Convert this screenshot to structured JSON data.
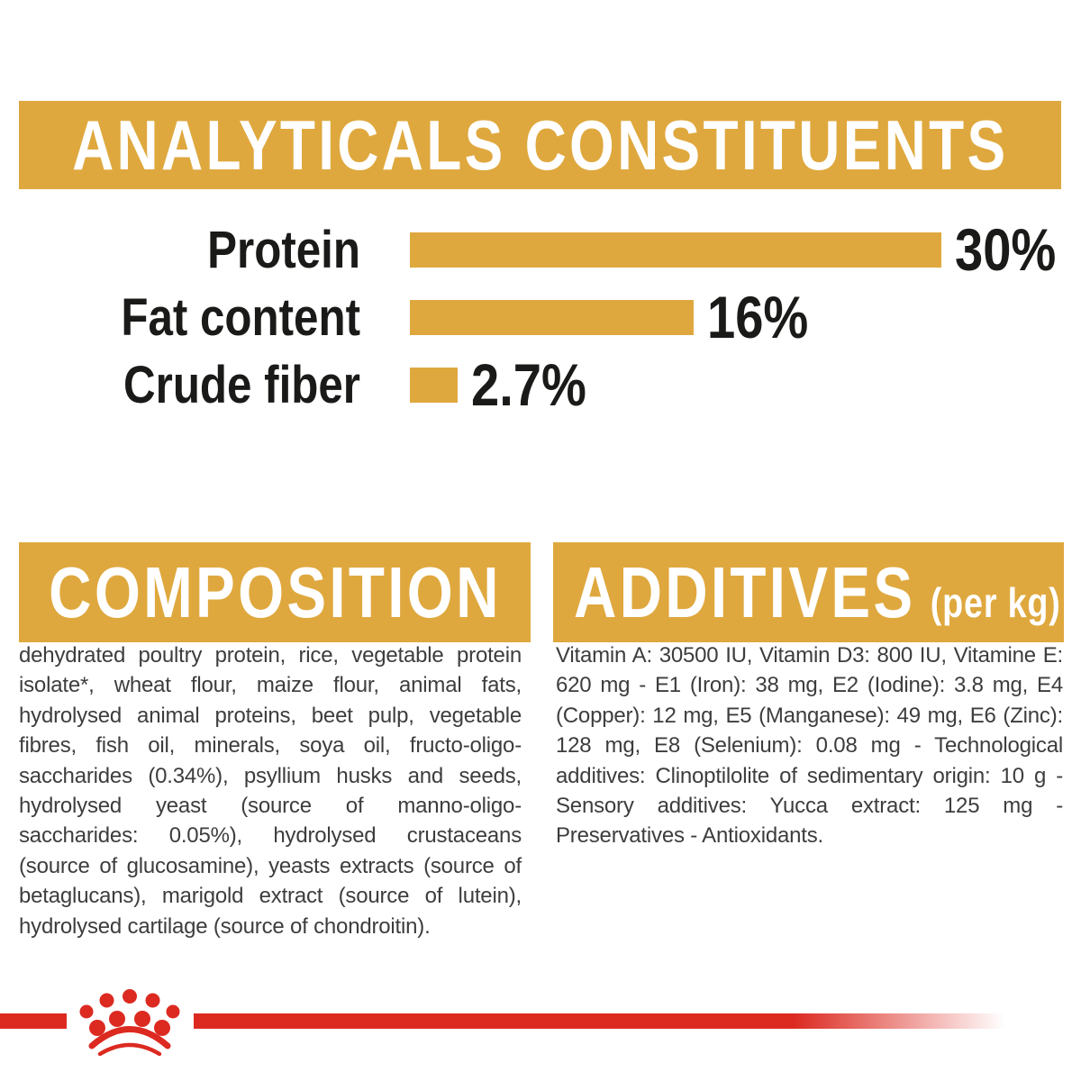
{
  "page_title": "ANALYTICALS CONSTITUENTS",
  "colors": {
    "gold": "#DFA83E",
    "red": "#DC2A21",
    "heading_text": "#ffffff",
    "chart_text": "#1a1a18",
    "body_text": "#3d3d3d",
    "background": "#ffffff"
  },
  "chart_data": {
    "type": "bar",
    "orientation": "horizontal",
    "title": "ANALYTICALS CONSTITUENTS",
    "categories": [
      "Protein",
      "Fat content",
      "Crude fiber"
    ],
    "values": [
      30,
      16,
      2.7
    ],
    "value_labels": [
      "30%",
      "16%",
      "2.7%"
    ],
    "unit": "%",
    "xlim": [
      0,
      30
    ],
    "bar_color": "#DFA83E",
    "grid": false,
    "legend": false
  },
  "composition": {
    "title": "COMPOSITION",
    "body": "dehydrated poultry protein, rice, vegetable protein isolate*, wheat flour, maize flour, animal fats, hydrolysed animal proteins, beet pulp, vegetable fibres, fish oil, minerals, soya oil, fructo-oligo-saccharides (0.34%), psyllium husks and seeds, hydrolysed yeast (source of manno-oligo-saccharides: 0.05%), hydrolysed crustaceans (source of glucosamine), yeasts extracts (source of betaglucans), marigold extract (source of lutein), hydrolysed cartilage (source of chondroitin)."
  },
  "additives": {
    "title": "ADDITIVES",
    "unit_label": "(per kg)",
    "body": "Vitamin A: 30500 IU, Vitamin D3: 800 IU, Vitamine E: 620 mg - E1 (Iron): 38 mg, E2 (Iodine): 3.8 mg, E4 (Copper): 12 mg, E5 (Manganese): 49 mg, E6 (Zinc): 128 mg, E8 (Selenium): 0.08 mg - Technological additives: Clinoptilolite of sedimentary origin: 10 g - Sensory additives: Yucca extract: 125 mg - Preservatives - Antioxidants.",
    "lines": [
      "Vitamin A: 30500 IU, Vitamin D3: 800 IU, Vitamine",
      "E: 620 mg - E1 (Iron): 38 mg, E2 (Iodine): 3.8 mg, E4",
      "(Copper): 12 mg, E5 (Manganese): 49 mg, E6 (Zinc):",
      "128 mg, E8 (Selenium): 0.08 mg - Technological",
      "additives: Clinoptilolite of sedimentary origin:",
      "10 g - Sensory additives: Yucca extract: 125 mg -",
      "Preservatives - Antioxidants."
    ]
  },
  "footer": {
    "logo": "royal-canin-crown"
  }
}
